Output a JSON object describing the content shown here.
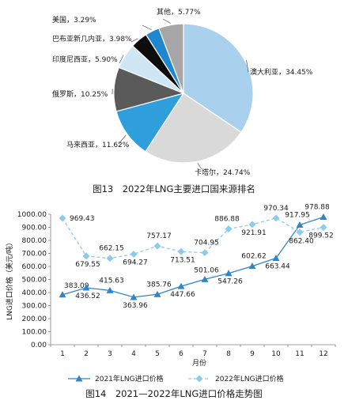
{
  "chart_data": [
    {
      "type": "pie",
      "title": "图13　2022年LNG主要进口国来源排名",
      "slices": [
        {
          "name": "澳大利亚",
          "value": 34.45,
          "label": "澳大利亚，34.45%",
          "color": "#a9d1ee"
        },
        {
          "name": "卡塔尔",
          "value": 24.74,
          "label": "卡塔尔，24.74%",
          "color": "#d9d9d9"
        },
        {
          "name": "马来西亚",
          "value": 11.62,
          "label": "马来西亚，11.62%",
          "color": "#2f9fdc"
        },
        {
          "name": "俄罗斯",
          "value": 10.25,
          "label": "俄罗斯，10.25%",
          "color": "#5a5a5a"
        },
        {
          "name": "印度尼西亚",
          "value": 5.9,
          "label": "印度尼西亚，5.90%",
          "color": "#cfe6f5"
        },
        {
          "name": "巴布亚新几内亚",
          "value": 3.98,
          "label": "巴布亚新几内亚，3.98%",
          "color": "#0d0d0d"
        },
        {
          "name": "美国",
          "value": 3.29,
          "label": "美国，3.29%",
          "color": "#1f86cf"
        },
        {
          "name": "其他",
          "value": 5.77,
          "label": "其他，5.77%",
          "color": "#a6a6a6"
        }
      ]
    },
    {
      "type": "line",
      "title": "图14　2021—2022年LNG进口价格走势图",
      "xlabel": "月份",
      "ylabel": "LNG进口价格（美元/吨）",
      "x": [
        1,
        2,
        3,
        4,
        5,
        6,
        7,
        8,
        9,
        10,
        11,
        12
      ],
      "ylim": [
        0,
        1000
      ],
      "yticks": [
        "0.00",
        "100.00",
        "200.00",
        "300.00",
        "400.00",
        "500.00",
        "600.00",
        "700.00",
        "800.00",
        "900.00",
        "1000.00"
      ],
      "legend_position": "bottom",
      "series": [
        {
          "name": "2021年LNG进口价格",
          "color": "#2e86c9",
          "marker": "triangle",
          "style": "solid",
          "values": [
            383.09,
            436.52,
            415.63,
            363.96,
            385.76,
            447.66,
            501.06,
            547.26,
            602.62,
            663.44,
            917.95,
            978.88
          ],
          "labels": [
            "383.09",
            "436.52",
            "415.63",
            "363.96",
            "385.76",
            "447.66",
            "501.06",
            "547.26",
            "602.62",
            "663.44",
            "917.95",
            "978.88"
          ]
        },
        {
          "name": "2022年LNG进口价格",
          "color": "#8ccbee",
          "marker": "diamond",
          "style": "dashed",
          "values": [
            969.43,
            679.55,
            662.15,
            694.27,
            757.17,
            713.51,
            704.95,
            886.88,
            921.91,
            970.34,
            862.4,
            899.52
          ],
          "labels": [
            "969.43",
            "679.55",
            "662.15",
            "694.27",
            "757.17",
            "713.51",
            "704.95",
            "886.88",
            "921.91",
            "970.34",
            "862.40",
            "899.52"
          ]
        }
      ]
    }
  ]
}
